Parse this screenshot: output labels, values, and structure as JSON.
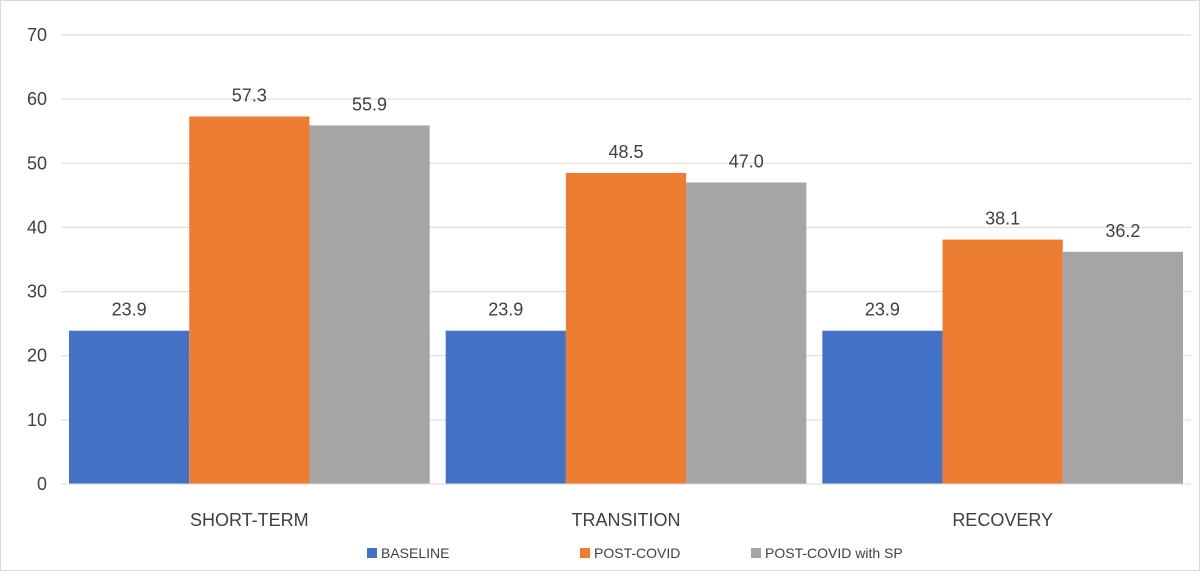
{
  "chart_data": {
    "type": "bar",
    "title": "",
    "xlabel": "",
    "ylabel": "",
    "categories": [
      "SHORT-TERM",
      "TRANSITION",
      "RECOVERY"
    ],
    "series": [
      {
        "name": "BASELINE",
        "color": "#4472C4",
        "values": [
          23.9,
          23.9,
          23.9
        ]
      },
      {
        "name": "POST-COVID",
        "color": "#ED7D31",
        "values": [
          57.3,
          48.5,
          38.1
        ]
      },
      {
        "name": "POST-COVID with SP",
        "color": "#A5A5A5",
        "values": [
          55.9,
          47.0,
          36.2
        ]
      }
    ],
    "ylim": [
      0,
      70
    ],
    "yticks": [
      0,
      10,
      20,
      30,
      40,
      50,
      60,
      70
    ],
    "data_label_decimals": 1,
    "grid": true,
    "legend_position": "bottom"
  }
}
